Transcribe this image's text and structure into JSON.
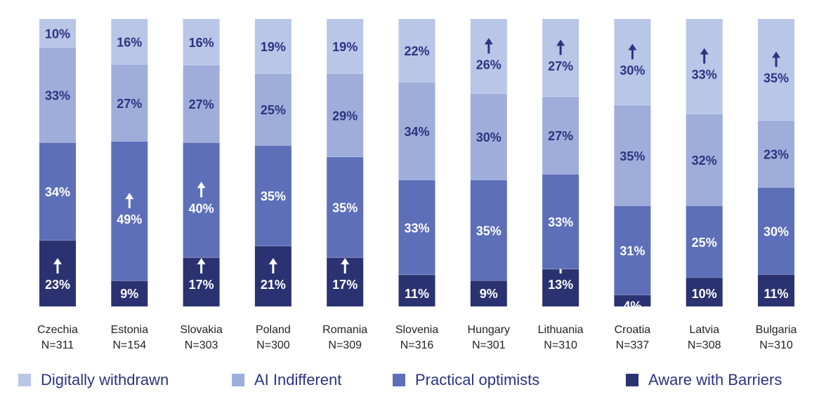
{
  "chart_data": {
    "type": "bar",
    "stacked": true,
    "percent": true,
    "categories": [
      "Czechia",
      "Estonia",
      "Slovakia",
      "Poland",
      "Romania",
      "Slovenia",
      "Hungary",
      "Lithuania",
      "Croatia",
      "Latvia",
      "Bulgaria"
    ],
    "sample_sizes": [
      "N=311",
      "N=154",
      "N=303",
      "N=300",
      "N=309",
      "N=316",
      "N=301",
      "N=310",
      "N=337",
      "N=308",
      "N=310"
    ],
    "series": [
      {
        "name": "Aware with Barriers",
        "color": "#2b3271",
        "values": [
          23,
          9,
          17,
          21,
          17,
          11,
          9,
          13,
          4,
          10,
          11
        ],
        "labels": [
          "23%",
          "9%",
          "17%",
          "21%",
          "17%",
          "11%",
          "9%",
          "13%",
          "4%",
          "10%",
          "11%"
        ],
        "up_arrow": [
          true,
          false,
          true,
          true,
          true,
          false,
          false,
          true,
          false,
          false,
          false
        ]
      },
      {
        "name": "Practical optimists",
        "color": "#5d6fb9",
        "values": [
          34,
          49,
          40,
          35,
          35,
          33,
          35,
          33,
          31,
          25,
          30
        ],
        "labels": [
          "34%",
          "49%",
          "40%",
          "35%",
          "35%",
          "33%",
          "35%",
          "33%",
          "31%",
          "25%",
          "30%"
        ],
        "up_arrow": [
          false,
          true,
          true,
          false,
          false,
          false,
          false,
          false,
          false,
          false,
          false
        ]
      },
      {
        "name": "AI Indifferent",
        "color": "#9eadda",
        "values": [
          33,
          27,
          27,
          25,
          29,
          34,
          30,
          27,
          35,
          32,
          23
        ],
        "labels": [
          "33%",
          "27%",
          "27%",
          "25%",
          "29%",
          "34%",
          "30%",
          "27%",
          "35%",
          "32%",
          "23%"
        ],
        "up_arrow": [
          false,
          false,
          false,
          false,
          false,
          false,
          false,
          false,
          false,
          false,
          false
        ]
      },
      {
        "name": "Digitally withdrawn",
        "color": "#b8c6e8",
        "values": [
          10,
          16,
          16,
          19,
          19,
          22,
          26,
          27,
          30,
          33,
          35
        ],
        "labels": [
          "10%",
          "16%",
          "16%",
          "19%",
          "19%",
          "22%",
          "26%",
          "27%",
          "30%",
          "33%",
          "35%"
        ],
        "up_arrow": [
          false,
          false,
          false,
          false,
          false,
          false,
          true,
          true,
          true,
          true,
          true
        ]
      }
    ],
    "legend_order": [
      "Digitally withdrawn",
      "AI Indifferent",
      "Practical optimists",
      "Aware with Barriers"
    ],
    "legend_position": "bottom",
    "grid": false
  }
}
